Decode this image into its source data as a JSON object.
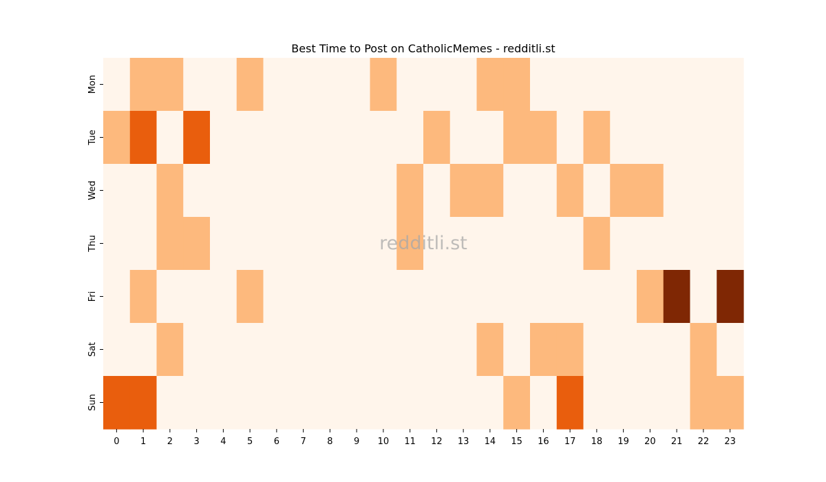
{
  "chart_data": {
    "type": "heatmap",
    "title": "Best Time to Post on CatholicMemes - redditli.st",
    "watermark": "redditli.st",
    "x": [
      "0",
      "1",
      "2",
      "3",
      "4",
      "5",
      "6",
      "7",
      "8",
      "9",
      "10",
      "11",
      "12",
      "13",
      "14",
      "15",
      "16",
      "17",
      "18",
      "19",
      "20",
      "21",
      "22",
      "23"
    ],
    "y": [
      "Mon",
      "Tue",
      "Wed",
      "Thu",
      "Fri",
      "Sat",
      "Sun"
    ],
    "colormap": "Oranges",
    "colors": {
      "0": "#fff5eb",
      "1": "#fdb97d",
      "2": "#e95e0d",
      "3": "#7f2704"
    },
    "values": [
      [
        0,
        1,
        1,
        0,
        0,
        1,
        0,
        0,
        0,
        0,
        1,
        0,
        0,
        0,
        1,
        1,
        0,
        0,
        0,
        0,
        0,
        0,
        0,
        0
      ],
      [
        1,
        2,
        0,
        2,
        0,
        0,
        0,
        0,
        0,
        0,
        0,
        0,
        1,
        0,
        0,
        1,
        1,
        0,
        1,
        0,
        0,
        0,
        0,
        0
      ],
      [
        0,
        0,
        1,
        0,
        0,
        0,
        0,
        0,
        0,
        0,
        0,
        1,
        0,
        1,
        1,
        0,
        0,
        1,
        0,
        1,
        1,
        0,
        0,
        0
      ],
      [
        0,
        0,
        1,
        1,
        0,
        0,
        0,
        0,
        0,
        0,
        0,
        1,
        0,
        0,
        0,
        0,
        0,
        0,
        1,
        0,
        0,
        0,
        0,
        0
      ],
      [
        0,
        1,
        0,
        0,
        0,
        1,
        0,
        0,
        0,
        0,
        0,
        0,
        0,
        0,
        0,
        0,
        0,
        0,
        0,
        0,
        1,
        3,
        0,
        3
      ],
      [
        0,
        0,
        1,
        0,
        0,
        0,
        0,
        0,
        0,
        0,
        0,
        0,
        0,
        0,
        1,
        0,
        1,
        1,
        0,
        0,
        0,
        0,
        1,
        0
      ],
      [
        2,
        2,
        0,
        0,
        0,
        0,
        0,
        0,
        0,
        0,
        0,
        0,
        0,
        0,
        0,
        1,
        0,
        2,
        0,
        0,
        0,
        0,
        1,
        1
      ]
    ],
    "xlabel": "",
    "ylabel": ""
  }
}
